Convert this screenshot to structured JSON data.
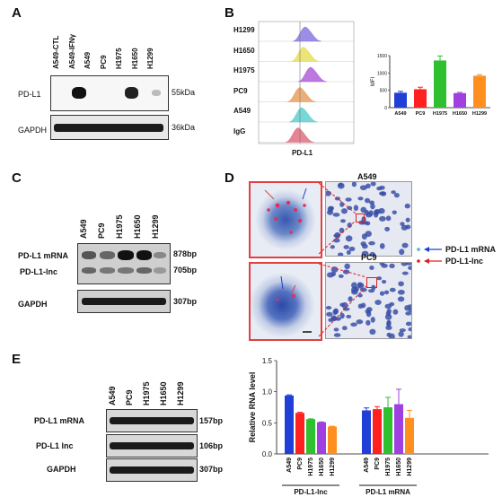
{
  "panels": {
    "A": "A",
    "B": "B",
    "C": "C",
    "D": "D",
    "E": "E"
  },
  "panel_a": {
    "lanes": [
      "A549-CTL",
      "A549-IFNγ",
      "A549",
      "PC9",
      "H1975",
      "H1650",
      "H1299"
    ],
    "rows": [
      "PD-L1",
      "GAPDH"
    ],
    "sizes": [
      "55kDa",
      "36kDa"
    ]
  },
  "panel_b": {
    "histogram_labels": [
      "H1299",
      "H1650",
      "H1975",
      "PC9",
      "A549",
      "IgG"
    ],
    "histogram_colors": [
      "#8a7be0",
      "#e8e060",
      "#b060d8",
      "#e8a060",
      "#60d0d0",
      "#e07080"
    ],
    "xlabel": "PD-L1",
    "chart_data": {
      "type": "bar",
      "categories": [
        "A549",
        "PC9",
        "H1975",
        "H1650",
        "H1299"
      ],
      "values": [
        430,
        530,
        1360,
        420,
        920
      ],
      "errors": [
        40,
        60,
        130,
        20,
        30
      ],
      "colors": [
        "#1f3fd6",
        "#ff2020",
        "#2fc02f",
        "#a040e0",
        "#ff9020"
      ],
      "ylabel": "MFI",
      "yticks": [
        "0",
        "500",
        "1000",
        "1500"
      ],
      "ylim": [
        0,
        1500
      ]
    }
  },
  "panel_c": {
    "lanes": [
      "A549",
      "PC9",
      "H1975",
      "H1650",
      "H1299"
    ],
    "rows": [
      "PD-L1 mRNA",
      "PD-L1-lnc",
      "GAPDH"
    ],
    "sizes": [
      "878bp",
      "705bp",
      "307bp"
    ]
  },
  "panel_d": {
    "titles": [
      "A549",
      "PC9"
    ],
    "legend": [
      "PD-L1 mRNA",
      "PD-L1-lnc"
    ]
  },
  "panel_e": {
    "lanes": [
      "A549",
      "PC9",
      "H1975",
      "H1650",
      "H1299"
    ],
    "rows": [
      "PD-L1 mRNA",
      "PD-L1 lnc",
      "GAPDH"
    ],
    "sizes": [
      "157bp",
      "106bp",
      "307bp"
    ],
    "chart_data": {
      "type": "bar",
      "categories": [
        "A549",
        "PC9",
        "H1975",
        "H1650",
        "H1299",
        "A549",
        "PC9",
        "H1975",
        "H1650",
        "H1299"
      ],
      "groups": [
        "PD-L1-lnc",
        "PD-L1 mRNA"
      ],
      "values": [
        0.94,
        0.66,
        0.56,
        0.51,
        0.44,
        0.7,
        0.72,
        0.75,
        0.8,
        0.58
      ],
      "errors": [
        0.01,
        0.01,
        0.005,
        0.005,
        0.005,
        0.04,
        0.04,
        0.16,
        0.24,
        0.12
      ],
      "colors": [
        "#1f3fd6",
        "#ff2020",
        "#2fc02f",
        "#a040e0",
        "#ff9020",
        "#1f3fd6",
        "#ff2020",
        "#2fc02f",
        "#a040e0",
        "#ff9020"
      ],
      "ylabel": "Relative RNA level",
      "yticks": [
        "0.0",
        "0.5",
        "1.0",
        "1.5"
      ],
      "ylim": [
        0,
        1.5
      ]
    }
  }
}
